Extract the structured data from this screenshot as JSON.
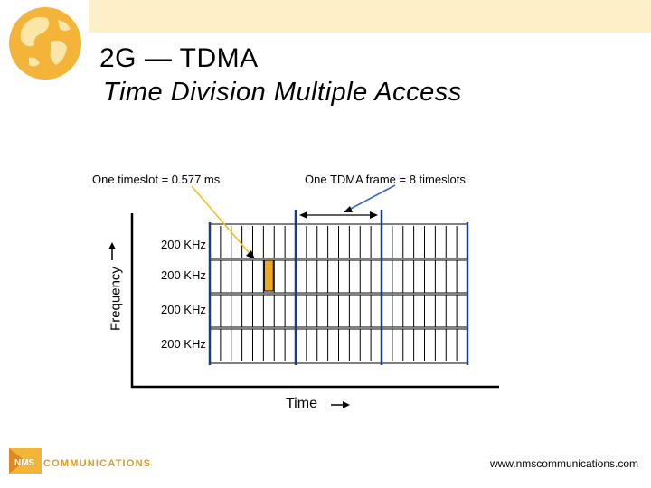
{
  "slide": {
    "title": "2G — TDMA",
    "subtitle": "Time Division Multiple Access"
  },
  "diagram": {
    "timeslot_label": "One timeslot = 0.577 ms",
    "frame_label": "One TDMA frame = 8 timeslots",
    "y_axis_label": "Frequency",
    "x_axis_label": "Time",
    "channel_labels": [
      "200 KHz",
      "200 KHz",
      "200 KHz",
      "200 KHz"
    ],
    "channels": 4,
    "slots_per_frame": 8,
    "highlighted_slot": {
      "channel": 2,
      "slot": 6
    },
    "colors": {
      "highlight_fill": "#f0a820",
      "frame_marker": "#1a3a8c",
      "slot_line": "#000000",
      "pointer_line": "#f0c020"
    }
  },
  "footer": {
    "url": "www.nmscommunications.com",
    "logo_mark": "NMS",
    "logo_text": "COMMUNICATIONS"
  }
}
